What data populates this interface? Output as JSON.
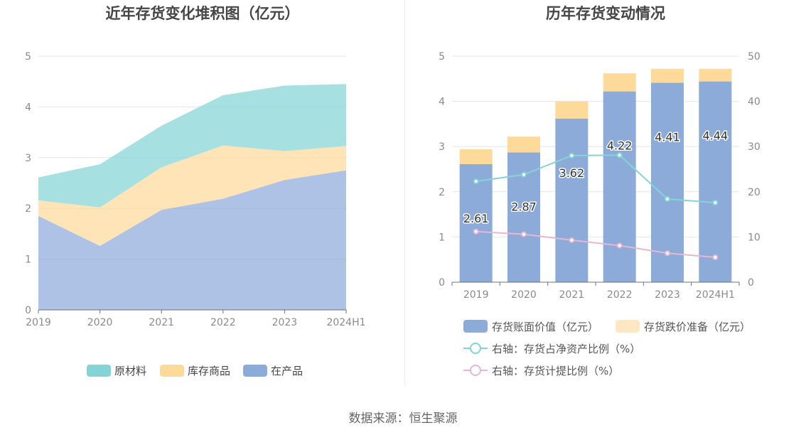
{
  "source": "数据来源：恒生聚源",
  "colors": {
    "raw_material": "#84d4d6",
    "finished_goods": "#fdd99a",
    "wip": "#8dabd9",
    "book_value": "#8dabd9",
    "impairment": "#fde8c3",
    "ratio_line": "#84d4d6",
    "provision_line": "#e6b7d5",
    "grid": "#e3e6ef",
    "axis_text": "#8a8a8a"
  },
  "chart_data": [
    {
      "type": "area",
      "title": "近年存货变化堆积图（亿元）",
      "categories": [
        "2019",
        "2020",
        "2021",
        "2022",
        "2023",
        "2024H1"
      ],
      "ylim": [
        0,
        5
      ],
      "yticks": [
        "0",
        "1",
        "2",
        "3",
        "4",
        "5"
      ],
      "stacked": true,
      "grid": true,
      "legend_position": "bottom",
      "series": [
        {
          "name": "在产品",
          "values": [
            1.85,
            1.26,
            1.97,
            2.19,
            2.56,
            2.75
          ]
        },
        {
          "name": "库存商品",
          "values": [
            0.31,
            0.76,
            0.84,
            1.05,
            0.57,
            0.48
          ]
        },
        {
          "name": "原材料",
          "values": [
            0.45,
            0.85,
            0.82,
            0.99,
            1.29,
            1.22
          ]
        }
      ],
      "legend_order": [
        "原材料",
        "库存商品",
        "在产品"
      ]
    },
    {
      "type": "bar",
      "title": "历年存货变动情况",
      "categories": [
        "2019",
        "2020",
        "2021",
        "2022",
        "2023",
        "2024H1"
      ],
      "ylim": [
        0,
        5
      ],
      "y2lim": [
        0,
        50
      ],
      "yticks": [
        "0",
        "1",
        "2",
        "3",
        "4",
        "5"
      ],
      "y2ticks": [
        "0",
        "10",
        "20",
        "30",
        "40",
        "50"
      ],
      "grid": true,
      "legend_position": "bottom",
      "series": [
        {
          "name": "存货账面价值（亿元）",
          "kind": "bar",
          "values": [
            2.61,
            2.87,
            3.62,
            4.22,
            4.41,
            4.44
          ],
          "labels": [
            "2.61",
            "2.87",
            "3.62",
            "4.22",
            "4.41",
            "4.44"
          ]
        },
        {
          "name": "存货跌价准备（亿元）",
          "kind": "bar",
          "values": [
            0.33,
            0.35,
            0.38,
            0.4,
            0.31,
            0.28
          ]
        },
        {
          "name": "右轴：存货占净资产比例（%）",
          "kind": "line",
          "axis": "right",
          "values": [
            22.3,
            23.8,
            28.0,
            28.1,
            18.4,
            17.6
          ]
        },
        {
          "name": "右轴：存货计提比例（%）",
          "kind": "line",
          "axis": "right",
          "values": [
            11.2,
            10.6,
            9.3,
            8.1,
            6.4,
            5.5
          ]
        }
      ]
    }
  ]
}
